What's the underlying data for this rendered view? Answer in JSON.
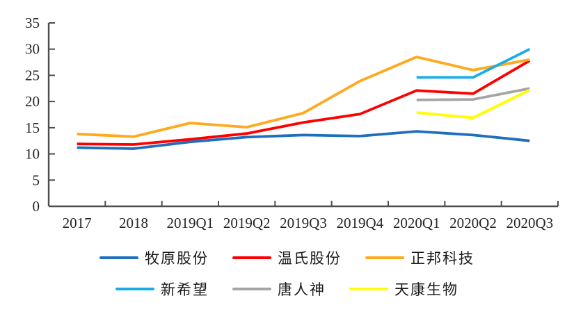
{
  "chart_data": {
    "type": "line",
    "title": "",
    "xlabel": "",
    "ylabel": "",
    "categories": [
      "2017",
      "2018",
      "2019Q1",
      "2019Q2",
      "2019Q3",
      "2019Q4",
      "2020Q1",
      "2020Q2",
      "2020Q3"
    ],
    "series": [
      {
        "name": "牧原股份",
        "color": "#1F6FBE",
        "values": [
          11.2,
          11.0,
          12.3,
          13.2,
          13.6,
          13.4,
          14.3,
          13.6,
          12.5
        ]
      },
      {
        "name": "温氏股份",
        "color": "#FE0000",
        "values": [
          11.9,
          11.8,
          12.8,
          13.9,
          16.0,
          17.6,
          22.1,
          21.5,
          27.8
        ]
      },
      {
        "name": "正邦科技",
        "color": "#FFA91E",
        "values": [
          13.8,
          13.3,
          15.9,
          15.1,
          17.8,
          23.9,
          28.5,
          26.0,
          28.0
        ]
      },
      {
        "name": "新希望",
        "color": "#18ADE8",
        "values": [
          null,
          null,
          null,
          null,
          null,
          null,
          24.6,
          24.6,
          30.0
        ]
      },
      {
        "name": "唐人神",
        "color": "#A5A5A5",
        "values": [
          null,
          null,
          null,
          null,
          null,
          null,
          20.3,
          20.4,
          22.5
        ]
      },
      {
        "name": "天康生物",
        "color": "#FFFF00",
        "values": [
          null,
          null,
          null,
          null,
          null,
          null,
          17.9,
          16.9,
          22.2
        ]
      }
    ],
    "ylim": [
      0,
      35
    ],
    "y_ticks": [
      0,
      5,
      10,
      15,
      20,
      25,
      30,
      35
    ],
    "grid": "off",
    "legend_position": "bottom",
    "legend_rows_of": 3
  },
  "colors": {
    "background": "#FFFFFF",
    "axis": "#4d4d4d",
    "tick_text": "#262626"
  }
}
